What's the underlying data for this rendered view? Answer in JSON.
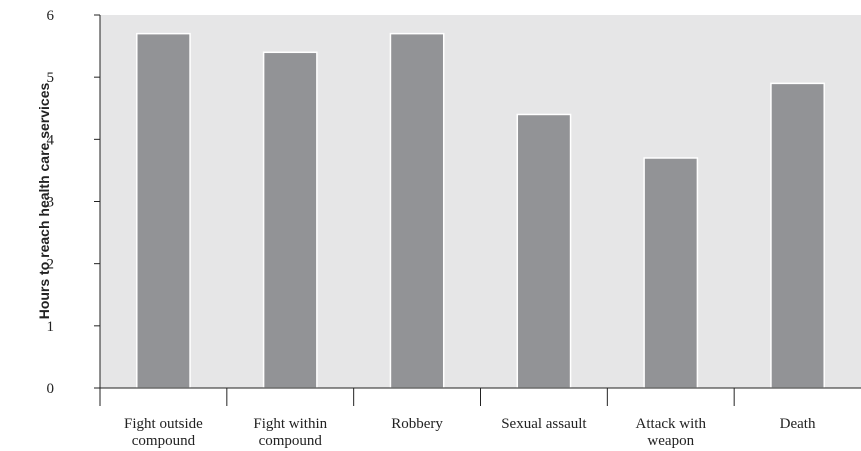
{
  "chart_data": {
    "type": "bar",
    "title": "",
    "xlabel": "",
    "ylabel": "Hours to reach health care services",
    "ylim": [
      0,
      6
    ],
    "yticks": [
      "0",
      "1",
      "2",
      "3",
      "4",
      "5",
      "6"
    ],
    "grid": false,
    "categories": [
      [
        "Fight outside",
        "compound"
      ],
      [
        "Fight within",
        "compound"
      ],
      [
        "Robbery"
      ],
      [
        "Sexual assault"
      ],
      [
        "Attack with",
        "weapon"
      ],
      [
        "Death"
      ]
    ],
    "values": [
      5.7,
      5.4,
      5.7,
      4.4,
      3.7,
      4.9
    ],
    "colors": {
      "plot_background": "#e6e6e7",
      "bar_fill": "#929396",
      "bar_stroke": "#ffffff",
      "axis": "#222222"
    }
  }
}
